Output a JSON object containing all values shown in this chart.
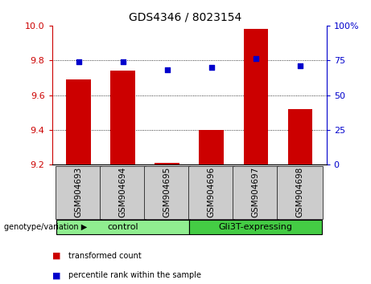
{
  "title": "GDS4346 / 8023154",
  "samples": [
    "GSM904693",
    "GSM904694",
    "GSM904695",
    "GSM904696",
    "GSM904697",
    "GSM904698"
  ],
  "bar_values": [
    9.69,
    9.74,
    9.21,
    9.4,
    9.98,
    9.52
  ],
  "scatter_values": [
    74,
    74,
    68,
    70,
    76,
    71
  ],
  "ylim_left": [
    9.2,
    10.0
  ],
  "ylim_right": [
    0,
    100
  ],
  "yticks_left": [
    9.2,
    9.4,
    9.6,
    9.8,
    10.0
  ],
  "yticks_right": [
    0,
    25,
    50,
    75,
    100
  ],
  "bar_color": "#cc0000",
  "scatter_color": "#0000cc",
  "bar_bottom": 9.2,
  "groups": [
    {
      "label": "control",
      "indices": [
        0,
        1,
        2
      ],
      "color": "#90ee90"
    },
    {
      "label": "Gli3T-expressing",
      "indices": [
        3,
        4,
        5
      ],
      "color": "#44cc44"
    }
  ],
  "genotype_label": "genotype/variation",
  "legend_items": [
    {
      "label": "transformed count",
      "color": "#cc0000"
    },
    {
      "label": "percentile rank within the sample",
      "color": "#0000cc"
    }
  ],
  "background_color": "#ffffff",
  "xtick_bg": "#cccccc",
  "tick_label_color_left": "#cc0000",
  "tick_label_color_right": "#0000cc",
  "title_fontsize": 10,
  "axis_fontsize": 8,
  "xtick_fontsize": 7.5
}
